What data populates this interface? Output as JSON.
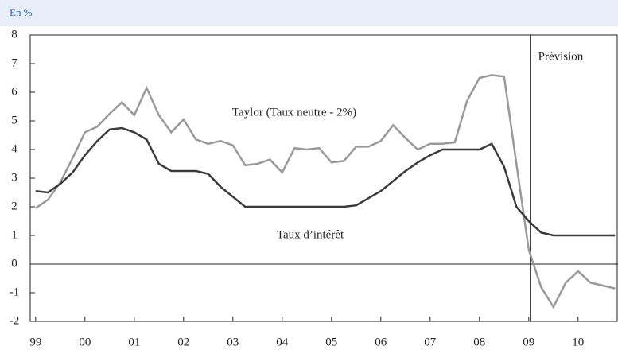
{
  "chart_data": {
    "type": "line",
    "header": "En %",
    "x": [
      1999,
      1999.25,
      1999.5,
      1999.75,
      2000,
      2000.25,
      2000.5,
      2000.75,
      2001,
      2001.25,
      2001.5,
      2001.75,
      2002,
      2002.25,
      2002.5,
      2002.75,
      2003,
      2003.25,
      2003.5,
      2003.75,
      2004,
      2004.25,
      2004.5,
      2004.75,
      2005,
      2005.25,
      2005.5,
      2005.75,
      2006,
      2006.25,
      2006.5,
      2006.75,
      2007,
      2007.25,
      2007.5,
      2007.75,
      2008,
      2008.25,
      2008.5,
      2008.75,
      2009,
      2009.25,
      2009.5,
      2009.75,
      2010,
      2010.25,
      2010.5,
      2010.75
    ],
    "series": [
      {
        "name": "Taylor (Taux neutre - 2%)",
        "color": "#999999",
        "values": [
          1.95,
          2.25,
          2.85,
          3.7,
          4.6,
          4.8,
          5.25,
          5.65,
          5.2,
          6.15,
          5.2,
          4.6,
          5.05,
          4.35,
          4.2,
          4.3,
          4.15,
          3.45,
          3.5,
          3.65,
          3.2,
          4.05,
          4.0,
          4.05,
          3.55,
          3.6,
          4.1,
          4.1,
          4.3,
          4.85,
          4.4,
          4.0,
          4.2,
          4.2,
          4.25,
          5.7,
          6.5,
          6.6,
          6.55,
          3.5,
          0.5,
          -0.8,
          -1.5,
          -0.65,
          -0.25,
          -0.65,
          -0.75,
          -0.85
        ]
      },
      {
        "name": "Taux d’intérêt",
        "color": "#3a3a3a",
        "values": [
          2.55,
          2.5,
          2.8,
          3.2,
          3.8,
          4.3,
          4.7,
          4.75,
          4.6,
          4.35,
          3.5,
          3.25,
          3.25,
          3.25,
          3.15,
          2.7,
          2.35,
          2,
          2,
          2,
          2,
          2,
          2,
          2,
          2,
          2,
          2.05,
          2.3,
          2.55,
          2.9,
          3.25,
          3.55,
          3.8,
          4,
          4,
          4,
          4,
          4.2,
          3.4,
          2,
          1.5,
          1.1,
          1,
          1,
          1,
          1,
          1,
          1
        ]
      }
    ],
    "vline": {
      "x": 2009.03,
      "label": "Prévision"
    },
    "xlim": [
      1998.89,
      2010.81
    ],
    "xticks": [
      {
        "value": 1999,
        "label": "99"
      },
      {
        "value": 2000,
        "label": "00"
      },
      {
        "value": 2001,
        "label": "01"
      },
      {
        "value": 2002,
        "label": "02"
      },
      {
        "value": 2003,
        "label": "03"
      },
      {
        "value": 2004,
        "label": "04"
      },
      {
        "value": 2005,
        "label": "05"
      },
      {
        "value": 2006,
        "label": "06"
      },
      {
        "value": 2007,
        "label": "07"
      },
      {
        "value": 2008,
        "label": "08"
      },
      {
        "value": 2009,
        "label": "09"
      },
      {
        "value": 2010,
        "label": "10"
      }
    ],
    "ylim": [
      -2,
      8
    ],
    "yticks": [
      -2,
      -1,
      0,
      1,
      2,
      3,
      4,
      5,
      6,
      7,
      8
    ]
  }
}
